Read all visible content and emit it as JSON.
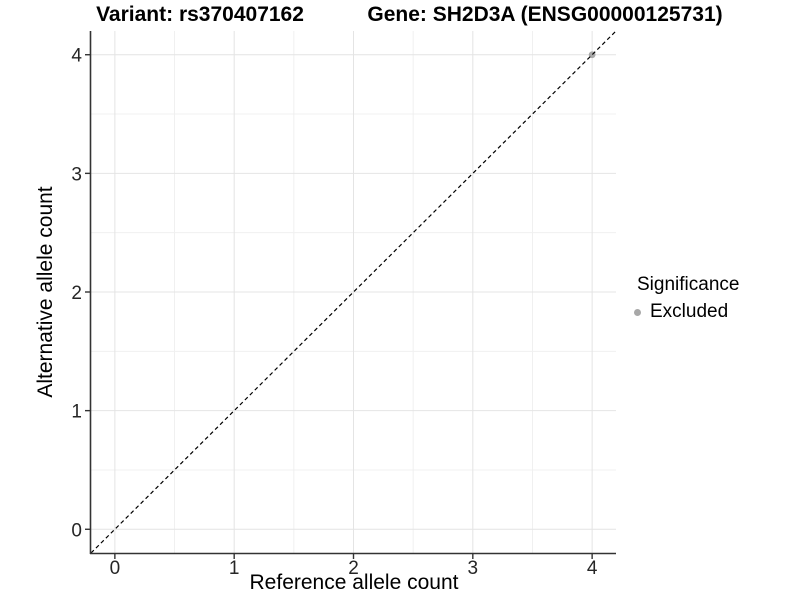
{
  "chart_data": {
    "type": "scatter",
    "title_variant": "Variant: rs370407162",
    "title_gene": "Gene: SH2D3A (ENSG00000125731)",
    "xlabel": "Reference allele count",
    "ylabel": "Alternative allele count",
    "xlim": [
      -0.2,
      4.2
    ],
    "ylim": [
      -0.2,
      4.2
    ],
    "x_ticks": [
      0,
      1,
      2,
      3,
      4
    ],
    "y_ticks": [
      0,
      1,
      2,
      3,
      4
    ],
    "x_minor": [
      0.5,
      1.5,
      2.5,
      3.5
    ],
    "y_minor": [
      0.5,
      1.5,
      2.5,
      3.5
    ],
    "grid": "on",
    "identity_line": {
      "type": "dashed",
      "from": [
        -0.2,
        -0.2
      ],
      "to": [
        4.2,
        4.2
      ],
      "color": "#000000"
    },
    "series": [
      {
        "name": "Excluded",
        "color": "#a8a8a8",
        "points": [
          {
            "x": 4,
            "y": 4
          }
        ]
      }
    ],
    "legend": {
      "title": "Significance",
      "position": "right",
      "items": [
        {
          "label": "Excluded",
          "color": "#a8a8a8"
        }
      ]
    },
    "style": {
      "axis_color": "#333333",
      "grid_major_color": "#e4e4e4",
      "grid_minor_color": "#f0f0f0",
      "tick_label_color": "#262626",
      "point_radius": 3.4
    }
  }
}
